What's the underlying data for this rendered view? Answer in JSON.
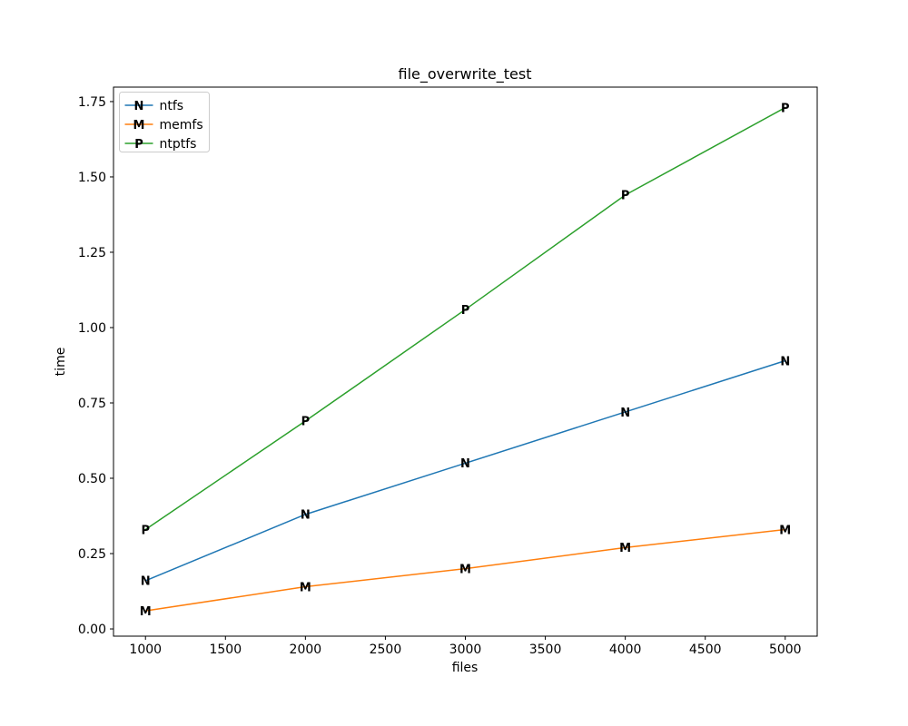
{
  "chart_data": {
    "type": "line",
    "title": "file_overwrite_test",
    "xlabel": "files",
    "ylabel": "time",
    "x": [
      1000,
      2000,
      3000,
      4000,
      5000
    ],
    "series": [
      {
        "name": "ntfs",
        "marker": "N",
        "color": "#1f77b4",
        "values": [
          0.16,
          0.38,
          0.55,
          0.72,
          0.89
        ]
      },
      {
        "name": "memfs",
        "marker": "M",
        "color": "#ff7f0e",
        "values": [
          0.06,
          0.14,
          0.2,
          0.27,
          0.33
        ]
      },
      {
        "name": "ntptfs",
        "marker": "P",
        "color": "#2ca02c",
        "values": [
          0.33,
          0.69,
          1.06,
          1.44,
          1.73
        ]
      }
    ],
    "x_ticks": [
      1000,
      1500,
      2000,
      2500,
      3000,
      3500,
      4000,
      4500,
      5000
    ],
    "y_ticks": [
      "0.00",
      "0.25",
      "0.50",
      "0.75",
      "1.00",
      "1.25",
      "1.50",
      "1.75"
    ],
    "xlim": [
      800,
      5200
    ],
    "ylim": [
      -0.024,
      1.798
    ],
    "grid": false,
    "legend_position": "upper left",
    "colors": {
      "spine": "#000000",
      "legend_border": "#cccccc",
      "background": "#ffffff"
    }
  }
}
